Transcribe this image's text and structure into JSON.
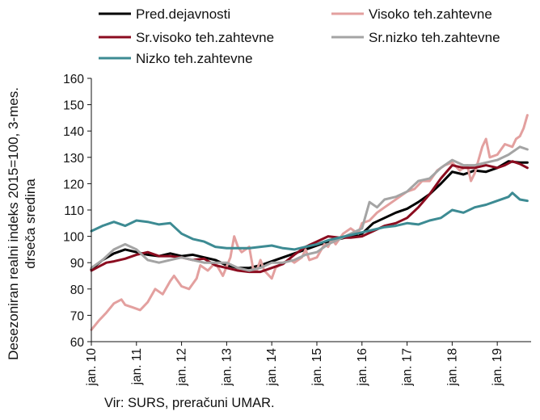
{
  "chart_data": {
    "type": "line",
    "ylabel_lines": [
      "Desezoniran realni indeks 2015=100, 3-mes.",
      "drseča sredina"
    ],
    "ylim": [
      60,
      160
    ],
    "yticks": [
      60,
      70,
      80,
      90,
      100,
      110,
      120,
      130,
      140,
      150,
      160
    ],
    "x_start_year": 2010,
    "x_months": 117,
    "xticks": [
      "jan. 10",
      "jan. 11",
      "jan. 12",
      "jan. 13",
      "jan. 14",
      "jan. 15",
      "jan. 16",
      "jan. 17",
      "jan. 18",
      "jan. 19"
    ],
    "grid": false,
    "legend_position": "top",
    "series": [
      {
        "name": "Pred.dejavnosti",
        "color": "#000000",
        "points": [
          [
            0,
            87.5
          ],
          [
            3,
            91
          ],
          [
            6,
            93.5
          ],
          [
            9,
            95
          ],
          [
            12,
            94
          ],
          [
            15,
            93
          ],
          [
            18,
            92.5
          ],
          [
            21,
            93.5
          ],
          [
            24,
            92.5
          ],
          [
            27,
            93
          ],
          [
            30,
            92
          ],
          [
            33,
            91
          ],
          [
            36,
            89
          ],
          [
            39,
            88
          ],
          [
            42,
            88
          ],
          [
            45,
            89
          ],
          [
            48,
            90.5
          ],
          [
            51,
            92
          ],
          [
            54,
            93.5
          ],
          [
            57,
            95
          ],
          [
            60,
            96.5
          ],
          [
            63,
            98
          ],
          [
            66,
            99
          ],
          [
            69,
            100
          ],
          [
            72,
            101
          ],
          [
            75,
            105
          ],
          [
            78,
            107
          ],
          [
            81,
            109
          ],
          [
            84,
            110.5
          ],
          [
            87,
            113
          ],
          [
            90,
            116
          ],
          [
            93,
            120
          ],
          [
            96,
            124.5
          ],
          [
            99,
            123.5
          ],
          [
            102,
            125
          ],
          [
            105,
            124.5
          ],
          [
            108,
            126
          ],
          [
            111,
            128.5
          ],
          [
            114,
            128
          ],
          [
            116,
            128
          ]
        ]
      },
      {
        "name": "Visoko teh.zahtevne",
        "color": "#e3a09f",
        "points": [
          [
            0,
            64.5
          ],
          [
            2,
            68
          ],
          [
            4,
            71
          ],
          [
            6,
            74.5
          ],
          [
            8,
            76
          ],
          [
            9,
            74
          ],
          [
            11,
            73
          ],
          [
            13,
            72
          ],
          [
            15,
            75
          ],
          [
            17,
            80
          ],
          [
            19,
            78
          ],
          [
            21,
            83
          ],
          [
            22,
            85
          ],
          [
            24,
            81
          ],
          [
            26,
            80
          ],
          [
            28,
            84
          ],
          [
            29,
            89
          ],
          [
            31,
            87
          ],
          [
            33,
            90
          ],
          [
            35,
            85
          ],
          [
            37,
            92
          ],
          [
            38,
            100
          ],
          [
            39,
            96
          ],
          [
            40,
            94
          ],
          [
            42,
            96
          ],
          [
            43,
            88
          ],
          [
            44,
            87
          ],
          [
            45,
            91
          ],
          [
            46,
            87
          ],
          [
            48,
            84
          ],
          [
            49,
            88
          ],
          [
            51,
            90
          ],
          [
            53,
            91
          ],
          [
            54,
            90
          ],
          [
            56,
            92
          ],
          [
            57,
            95
          ],
          [
            58,
            91
          ],
          [
            60,
            92
          ],
          [
            62,
            97
          ],
          [
            63,
            96
          ],
          [
            64,
            99
          ],
          [
            65,
            97
          ],
          [
            67,
            101
          ],
          [
            69,
            103
          ],
          [
            71,
            101
          ],
          [
            72,
            105
          ],
          [
            74,
            106
          ],
          [
            76,
            109
          ],
          [
            78,
            111
          ],
          [
            80,
            113
          ],
          [
            82,
            115
          ],
          [
            84,
            117
          ],
          [
            86,
            118
          ],
          [
            88,
            121
          ],
          [
            90,
            121
          ],
          [
            92,
            125
          ],
          [
            94,
            127
          ],
          [
            96,
            128
          ],
          [
            98,
            125
          ],
          [
            100,
            127
          ],
          [
            101,
            121
          ],
          [
            102,
            124
          ],
          [
            104,
            134
          ],
          [
            105,
            137
          ],
          [
            106,
            130
          ],
          [
            108,
            131
          ],
          [
            110,
            135
          ],
          [
            112,
            134
          ],
          [
            113,
            137
          ],
          [
            114,
            138
          ],
          [
            115,
            141
          ],
          [
            116,
            146
          ]
        ]
      },
      {
        "name": "Sr.visoko teh.zahtevne",
        "color": "#8b0c1f",
        "points": [
          [
            0,
            87
          ],
          [
            2,
            88.5
          ],
          [
            4,
            90
          ],
          [
            6,
            90.5
          ],
          [
            9,
            91.5
          ],
          [
            12,
            93
          ],
          [
            15,
            94
          ],
          [
            18,
            92.5
          ],
          [
            21,
            92.5
          ],
          [
            24,
            92
          ],
          [
            27,
            91
          ],
          [
            30,
            91.5
          ],
          [
            33,
            89
          ],
          [
            36,
            88
          ],
          [
            39,
            87
          ],
          [
            42,
            86.5
          ],
          [
            45,
            86.5
          ],
          [
            48,
            88
          ],
          [
            51,
            89.5
          ],
          [
            54,
            93
          ],
          [
            57,
            96
          ],
          [
            60,
            98
          ],
          [
            63,
            100
          ],
          [
            66,
            99.5
          ],
          [
            69,
            99.5
          ],
          [
            72,
            100
          ],
          [
            75,
            102
          ],
          [
            78,
            104
          ],
          [
            81,
            105
          ],
          [
            84,
            107
          ],
          [
            87,
            111
          ],
          [
            90,
            116
          ],
          [
            93,
            122
          ],
          [
            96,
            127
          ],
          [
            99,
            126
          ],
          [
            102,
            126
          ],
          [
            105,
            127
          ],
          [
            108,
            126
          ],
          [
            110,
            127
          ],
          [
            112,
            128.5
          ],
          [
            114,
            127.5
          ],
          [
            116,
            126
          ]
        ]
      },
      {
        "name": "Sr.nizko teh.zahtevne",
        "color": "#a4a4a4",
        "points": [
          [
            0,
            88
          ],
          [
            3,
            91
          ],
          [
            6,
            95
          ],
          [
            9,
            97
          ],
          [
            12,
            95
          ],
          [
            15,
            91
          ],
          [
            18,
            90
          ],
          [
            21,
            91
          ],
          [
            24,
            92
          ],
          [
            27,
            91
          ],
          [
            30,
            90
          ],
          [
            33,
            90
          ],
          [
            36,
            90
          ],
          [
            39,
            88
          ],
          [
            42,
            87
          ],
          [
            45,
            88
          ],
          [
            48,
            90
          ],
          [
            51,
            90
          ],
          [
            54,
            91
          ],
          [
            57,
            93
          ],
          [
            60,
            94
          ],
          [
            63,
            97
          ],
          [
            66,
            99
          ],
          [
            69,
            101
          ],
          [
            72,
            103
          ],
          [
            74,
            113
          ],
          [
            76,
            111
          ],
          [
            78,
            114
          ],
          [
            81,
            115
          ],
          [
            84,
            117
          ],
          [
            87,
            121
          ],
          [
            90,
            122
          ],
          [
            93,
            126
          ],
          [
            96,
            129
          ],
          [
            99,
            127
          ],
          [
            102,
            127
          ],
          [
            105,
            128
          ],
          [
            108,
            129
          ],
          [
            111,
            131
          ],
          [
            114,
            134
          ],
          [
            116,
            133
          ]
        ]
      },
      {
        "name": "Nizko teh.zahtevne",
        "color": "#3d8b93",
        "points": [
          [
            0,
            102
          ],
          [
            3,
            104
          ],
          [
            6,
            105.5
          ],
          [
            9,
            104
          ],
          [
            12,
            106
          ],
          [
            15,
            105.5
          ],
          [
            18,
            104.5
          ],
          [
            21,
            105
          ],
          [
            24,
            101
          ],
          [
            27,
            99
          ],
          [
            30,
            98
          ],
          [
            33,
            96
          ],
          [
            36,
            95.5
          ],
          [
            39,
            95.5
          ],
          [
            42,
            95.5
          ],
          [
            45,
            96
          ],
          [
            48,
            96.5
          ],
          [
            51,
            95.5
          ],
          [
            54,
            95
          ],
          [
            57,
            96
          ],
          [
            60,
            97
          ],
          [
            63,
            98.5
          ],
          [
            66,
            99.5
          ],
          [
            69,
            100.5
          ],
          [
            72,
            101.5
          ],
          [
            75,
            102.5
          ],
          [
            78,
            103.5
          ],
          [
            81,
            104
          ],
          [
            84,
            105
          ],
          [
            87,
            104.5
          ],
          [
            90,
            106
          ],
          [
            93,
            107
          ],
          [
            96,
            110
          ],
          [
            99,
            109
          ],
          [
            102,
            111
          ],
          [
            105,
            112
          ],
          [
            108,
            113.5
          ],
          [
            111,
            115
          ],
          [
            112,
            116.5
          ],
          [
            114,
            114
          ],
          [
            116,
            113.5
          ]
        ]
      }
    ]
  },
  "source_text": "Vir: SURS, preračuni UMAR."
}
